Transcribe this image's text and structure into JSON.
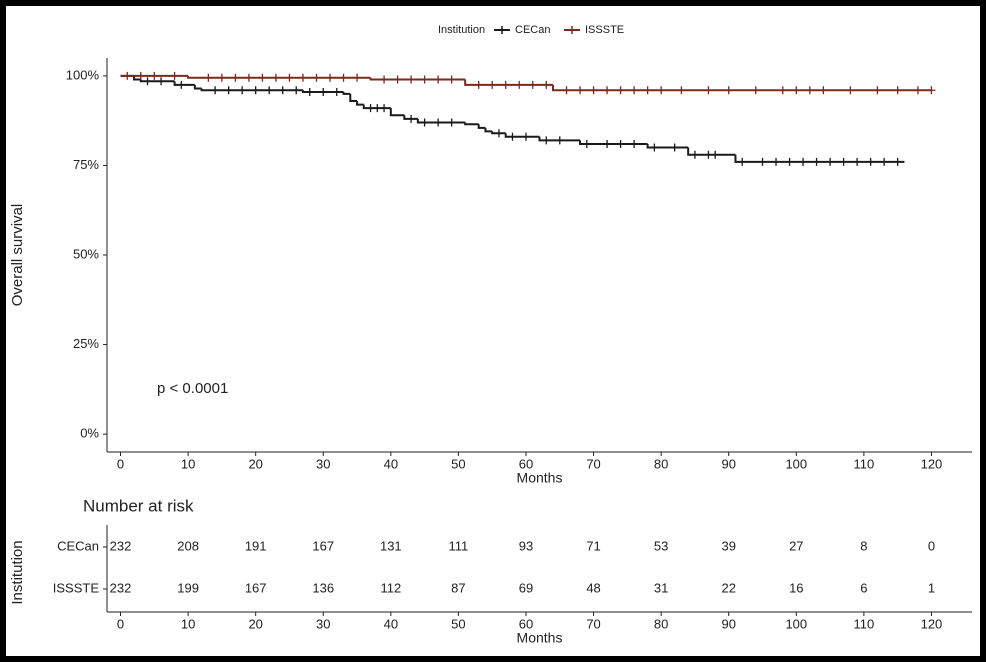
{
  "chart_data": [
    {
      "type": "km",
      "legend_title": "Institution",
      "xlabel": "Months",
      "ylabel": "Overall survival",
      "annotation": "p < 0.0001",
      "xlim": [
        -2,
        126
      ],
      "ylim": [
        -5,
        105
      ],
      "xticks": [
        0,
        10,
        20,
        30,
        40,
        50,
        60,
        70,
        80,
        90,
        100,
        110,
        120
      ],
      "yticks": [
        {
          "value": 0,
          "label": "0%"
        },
        {
          "value": 25,
          "label": "25%"
        },
        {
          "value": 50,
          "label": "50%"
        },
        {
          "value": 75,
          "label": "75%"
        },
        {
          "value": 100,
          "label": "100%"
        }
      ],
      "series": [
        {
          "name": "CECan",
          "color": "#1a1a1a",
          "x": [
            0,
            2,
            3,
            8,
            11,
            12,
            27,
            33,
            34,
            35,
            36,
            40,
            42,
            44,
            51,
            53,
            54,
            55,
            57,
            62,
            68,
            78,
            84,
            91,
            116
          ],
          "values": [
            100,
            99,
            98.5,
            97.5,
            96.5,
            96,
            95.5,
            95,
            93,
            92,
            91,
            89,
            88,
            87,
            86.5,
            85.5,
            84.5,
            84,
            83,
            82,
            81,
            80,
            78,
            76,
            76
          ],
          "censored": [
            4,
            6,
            9,
            14,
            16,
            18,
            20,
            22,
            24,
            26,
            28,
            30,
            32,
            37,
            38,
            39,
            43,
            45,
            47,
            49,
            56,
            58,
            60,
            63,
            65,
            69,
            72,
            74,
            76,
            79,
            82,
            85,
            87,
            88,
            92,
            95,
            97,
            99,
            101,
            103,
            105,
            107,
            109,
            111,
            113,
            115
          ]
        },
        {
          "name": "ISSSTE",
          "color": "#7a2a1f",
          "x": [
            0,
            10,
            37,
            51,
            64,
            120
          ],
          "values": [
            100,
            99.5,
            99,
            97.5,
            96,
            96
          ],
          "censored": [
            1,
            3,
            5,
            8,
            13,
            15,
            17,
            19,
            21,
            23,
            25,
            27,
            29,
            31,
            33,
            35,
            39,
            41,
            43,
            45,
            47,
            49,
            53,
            55,
            57,
            59,
            61,
            63,
            66,
            68,
            70,
            72,
            74,
            76,
            78,
            80,
            83,
            87,
            90,
            94,
            98,
            100,
            102,
            104,
            108,
            112,
            115,
            118,
            120
          ]
        }
      ]
    },
    {
      "type": "risk-table",
      "title": "Number at risk",
      "xlabel": "Months",
      "ylabel": "Institution",
      "xlim": [
        -2,
        126
      ],
      "xticks": [
        0,
        10,
        20,
        30,
        40,
        50,
        60,
        70,
        80,
        90,
        100,
        110,
        120
      ],
      "rows": [
        {
          "name": "CECan",
          "color": "#222222",
          "values": [
            232,
            208,
            191,
            167,
            131,
            111,
            93,
            71,
            53,
            39,
            27,
            8,
            0
          ]
        },
        {
          "name": "ISSSTE",
          "color": "#7a3b2e",
          "values": [
            232,
            199,
            167,
            136,
            112,
            87,
            69,
            48,
            31,
            22,
            16,
            6,
            1
          ]
        }
      ]
    }
  ]
}
